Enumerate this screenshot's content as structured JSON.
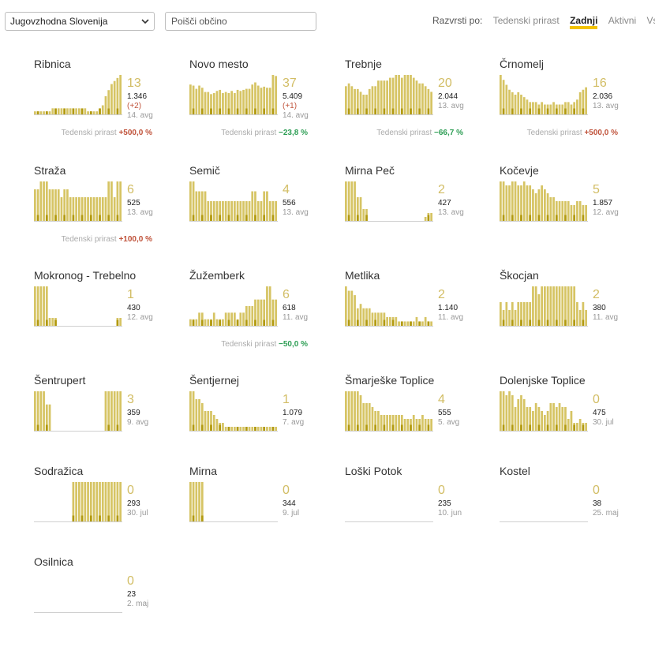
{
  "toolbar": {
    "region": "Jugovzhodna Slovenija",
    "search_placeholder": "Poišči občino",
    "sort_label": "Razvrsti po:",
    "sort_options": [
      "Tedenski prirast",
      "Zadnji",
      "Aktivni",
      "Vsi"
    ],
    "active_sort": "Zadnji"
  },
  "trend_label": "Tedenski prirast",
  "colors": {
    "bar": "#d6c464",
    "bar_dark": "#b29a10",
    "big_number": "#d2bd64",
    "trend_up": "#c0533b",
    "trend_down": "#2e9e55"
  },
  "municipalities": [
    {
      "name": "Ribnica",
      "big": "13",
      "total": "1.346",
      "delta": "(+2)",
      "date": "14. avg",
      "trend": "+500,0 %",
      "trend_dir": "up",
      "bars": [
        1,
        1,
        1,
        1,
        1,
        1,
        2,
        2,
        2,
        2,
        2,
        2,
        2,
        2,
        2,
        2,
        2,
        2,
        1,
        1,
        1,
        1,
        2,
        3,
        6,
        8,
        10,
        11,
        12,
        13
      ]
    },
    {
      "name": "Novo mesto",
      "big": "37",
      "total": "5.409",
      "delta": "(+1)",
      "date": "14. avg",
      "trend": "−23,8 %",
      "trend_dir": "down",
      "bars": [
        28,
        27,
        24,
        27,
        25,
        21,
        21,
        19,
        20,
        22,
        23,
        20,
        21,
        20,
        22,
        20,
        23,
        22,
        23,
        24,
        24,
        28,
        30,
        27,
        25,
        26,
        25,
        25,
        37,
        36
      ]
    },
    {
      "name": "Trebnje",
      "big": "20",
      "total": "2.044",
      "delta": "",
      "date": "13. avg",
      "trend": "−66,7 %",
      "trend_dir": "down",
      "bars": [
        10,
        11,
        10,
        9,
        9,
        8,
        7,
        7,
        9,
        10,
        10,
        12,
        12,
        12,
        12,
        13,
        13,
        14,
        14,
        13,
        14,
        14,
        14,
        13,
        12,
        11,
        11,
        10,
        9,
        8
      ]
    },
    {
      "name": "Črnomelj",
      "big": "16",
      "total": "2.036",
      "delta": "",
      "date": "13. avg",
      "trend": "+500,0 %",
      "trend_dir": "up",
      "bars": [
        16,
        14,
        12,
        10,
        9,
        8,
        9,
        8,
        7,
        6,
        5,
        5,
        5,
        4,
        5,
        4,
        4,
        4,
        5,
        4,
        4,
        4,
        5,
        5,
        4,
        5,
        6,
        9,
        10,
        11
      ]
    },
    {
      "name": "Straža",
      "big": "6",
      "total": "525",
      "delta": "",
      "date": "13. avg",
      "trend": "+100,0 %",
      "trend_dir": "up",
      "bars": [
        4,
        4,
        5,
        5,
        5,
        4,
        4,
        4,
        4,
        3,
        4,
        4,
        3,
        3,
        3,
        3,
        3,
        3,
        3,
        3,
        3,
        3,
        3,
        3,
        3,
        5,
        5,
        3,
        5,
        5
      ]
    },
    {
      "name": "Semič",
      "big": "4",
      "total": "556",
      "delta": "",
      "date": "13. avg",
      "trend": "",
      "trend_dir": "",
      "bars": [
        4,
        4,
        3,
        3,
        3,
        3,
        2,
        2,
        2,
        2,
        2,
        2,
        2,
        2,
        2,
        2,
        2,
        2,
        2,
        2,
        2,
        3,
        3,
        2,
        2,
        3,
        3,
        2,
        2,
        2
      ]
    },
    {
      "name": "Mirna Peč",
      "big": "2",
      "total": "427",
      "delta": "",
      "date": "13. avg",
      "trend": "",
      "trend_dir": "",
      "bars": [
        10,
        10,
        10,
        10,
        6,
        6,
        3,
        3,
        0,
        0,
        0,
        0,
        0,
        0,
        0,
        0,
        0,
        0,
        0,
        0,
        0,
        0,
        0,
        0,
        0,
        0,
        0,
        1,
        2,
        2
      ]
    },
    {
      "name": "Kočevje",
      "big": "5",
      "total": "1.857",
      "delta": "",
      "date": "12. avg",
      "trend": "",
      "trend_dir": "",
      "bars": [
        10,
        10,
        9,
        9,
        10,
        10,
        9,
        9,
        10,
        9,
        9,
        8,
        7,
        8,
        9,
        8,
        7,
        6,
        6,
        5,
        5,
        5,
        5,
        5,
        4,
        4,
        5,
        5,
        4,
        4
      ]
    },
    {
      "name": "Mokronog - Trebelno",
      "big": "1",
      "total": "430",
      "delta": "",
      "date": "12. avg",
      "trend": "",
      "trend_dir": "",
      "bars": [
        5,
        5,
        5,
        5,
        5,
        1,
        1,
        1,
        0,
        0,
        0,
        0,
        0,
        0,
        0,
        0,
        0,
        0,
        0,
        0,
        0,
        0,
        0,
        0,
        0,
        0,
        0,
        0,
        1,
        1
      ]
    },
    {
      "name": "Žužemberk",
      "big": "6",
      "total": "618",
      "delta": "",
      "date": "11. avg",
      "trend": "−50,0 %",
      "trend_dir": "down",
      "bars": [
        1,
        1,
        1,
        2,
        2,
        1,
        1,
        1,
        2,
        1,
        1,
        1,
        2,
        2,
        2,
        2,
        1,
        2,
        2,
        3,
        3,
        3,
        4,
        4,
        4,
        4,
        6,
        6,
        4,
        4
      ]
    },
    {
      "name": "Metlika",
      "big": "2",
      "total": "1.140",
      "delta": "",
      "date": "11. avg",
      "trend": "",
      "trend_dir": "",
      "bars": [
        9,
        8,
        8,
        7,
        4,
        5,
        4,
        4,
        4,
        3,
        3,
        3,
        3,
        3,
        2,
        2,
        2,
        2,
        1,
        1,
        1,
        1,
        1,
        1,
        2,
        1,
        1,
        2,
        1,
        1
      ]
    },
    {
      "name": "Škocjan",
      "big": "2",
      "total": "380",
      "delta": "",
      "date": "11. avg",
      "trend": "",
      "trend_dir": "",
      "bars": [
        3,
        2,
        3,
        2,
        3,
        2,
        3,
        3,
        3,
        3,
        3,
        5,
        5,
        4,
        5,
        5,
        5,
        5,
        5,
        5,
        5,
        5,
        5,
        5,
        5,
        5,
        3,
        2,
        3,
        2
      ]
    },
    {
      "name": "Šentrupert",
      "big": "3",
      "total": "359",
      "delta": "",
      "date": "9. avg",
      "trend": "",
      "trend_dir": "",
      "bars": [
        3,
        3,
        3,
        3,
        2,
        2,
        0,
        0,
        0,
        0,
        0,
        0,
        0,
        0,
        0,
        0,
        0,
        0,
        0,
        0,
        0,
        0,
        0,
        0,
        3,
        3,
        3,
        3,
        3,
        3
      ]
    },
    {
      "name": "Šentjernej",
      "big": "1",
      "total": "1.079",
      "delta": "",
      "date": "7. avg",
      "trend": "",
      "trend_dir": "",
      "bars": [
        10,
        10,
        8,
        8,
        7,
        5,
        5,
        5,
        4,
        3,
        2,
        2,
        1,
        1,
        1,
        1,
        1,
        1,
        1,
        1,
        1,
        1,
        1,
        1,
        1,
        1,
        1,
        1,
        1,
        1
      ]
    },
    {
      "name": "Šmarješke Toplice",
      "big": "4",
      "total": "555",
      "delta": "",
      "date": "5. avg",
      "trend": "",
      "trend_dir": "",
      "bars": [
        10,
        10,
        10,
        10,
        10,
        9,
        7,
        7,
        7,
        6,
        5,
        5,
        4,
        4,
        4,
        4,
        4,
        4,
        4,
        4,
        3,
        3,
        3,
        4,
        3,
        3,
        4,
        3,
        3,
        3
      ]
    },
    {
      "name": "Dolenjske Toplice",
      "big": "0",
      "total": "475",
      "delta": "",
      "date": "30. jul",
      "trend": "",
      "trend_dir": "",
      "bars": [
        10,
        10,
        9,
        10,
        9,
        6,
        8,
        9,
        8,
        6,
        6,
        5,
        7,
        6,
        5,
        4,
        5,
        7,
        7,
        6,
        7,
        6,
        6,
        3,
        5,
        2,
        2,
        3,
        2,
        2
      ]
    },
    {
      "name": "Sodražica",
      "big": "0",
      "total": "293",
      "delta": "",
      "date": "30. jul",
      "trend": "",
      "trend_dir": "",
      "bars": [
        0,
        0,
        0,
        0,
        0,
        0,
        0,
        0,
        0,
        0,
        0,
        0,
        0,
        1,
        1,
        1,
        1,
        1,
        1,
        1,
        1,
        1,
        1,
        1,
        1,
        1,
        1,
        1,
        1,
        1
      ]
    },
    {
      "name": "Mirna",
      "big": "0",
      "total": "344",
      "delta": "",
      "date": "9. jul",
      "trend": "",
      "trend_dir": "",
      "bars": [
        1,
        1,
        1,
        1,
        1,
        0,
        0,
        0,
        0,
        0,
        0,
        0,
        0,
        0,
        0,
        0,
        0,
        0,
        0,
        0,
        0,
        0,
        0,
        0,
        0,
        0,
        0,
        0,
        0,
        0
      ]
    },
    {
      "name": "Loški Potok",
      "big": "0",
      "total": "235",
      "delta": "",
      "date": "10. jun",
      "trend": "",
      "trend_dir": "",
      "bars": [
        0,
        0,
        0,
        0,
        0,
        0,
        0,
        0,
        0,
        0,
        0,
        0,
        0,
        0,
        0,
        0,
        0,
        0,
        0,
        0,
        0,
        0,
        0,
        0,
        0,
        0,
        0,
        0,
        0,
        0
      ]
    },
    {
      "name": "Kostel",
      "big": "0",
      "total": "38",
      "delta": "",
      "date": "25. maj",
      "trend": "",
      "trend_dir": "",
      "bars": [
        0,
        0,
        0,
        0,
        0,
        0,
        0,
        0,
        0,
        0,
        0,
        0,
        0,
        0,
        0,
        0,
        0,
        0,
        0,
        0,
        0,
        0,
        0,
        0,
        0,
        0,
        0,
        0,
        0,
        0
      ]
    },
    {
      "name": "Osilnica",
      "big": "0",
      "total": "23",
      "delta": "",
      "date": "2. maj",
      "trend": "",
      "trend_dir": "",
      "bars": [
        0,
        0,
        0,
        0,
        0,
        0,
        0,
        0,
        0,
        0,
        0,
        0,
        0,
        0,
        0,
        0,
        0,
        0,
        0,
        0,
        0,
        0,
        0,
        0,
        0,
        0,
        0,
        0,
        0,
        0
      ]
    }
  ]
}
